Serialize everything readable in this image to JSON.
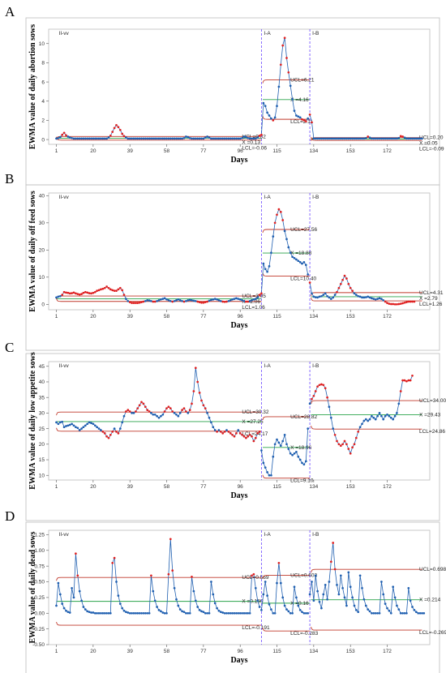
{
  "colors": {
    "ucl_lcl": "#c0392b",
    "center": "#2aa34a",
    "series": "#1f5fb0",
    "in_control_point": "#1f5fb0",
    "out_of_control_point": "#e02020",
    "phase_divider": "#7b5cff",
    "frame": "#bdbdbd",
    "plot_bg": "#ffffff"
  },
  "chart_data": [
    {
      "letter": "A",
      "type": "line",
      "ylabel": "EWMA value of daily abortion sows",
      "xlabel": "Days",
      "x_ticks": [
        "1",
        "20",
        "39",
        "58",
        "77",
        "96",
        "115",
        "134",
        "153",
        "172"
      ],
      "y_ticks": [
        "0",
        "2",
        "4",
        "6",
        "8",
        "10"
      ],
      "ylim": [
        -0.5,
        11.5
      ],
      "xlim": [
        -3,
        194
      ],
      "phases": [
        {
          "label": "II-vv",
          "start": 1,
          "end": 107,
          "ucl": 0.32,
          "center": 0.13,
          "lcl": -0.06,
          "ucl_text": "UCL=0.32",
          "center_text": "X =0.13",
          "lcl_text": "LCL=-0.06"
        },
        {
          "label": "I-A",
          "start": 107,
          "end": 132,
          "ucl": 6.21,
          "center": 4.16,
          "lcl": 2.11,
          "ucl_text": "UCL=6.21",
          "center_text": "X =4.16",
          "lcl_text": "LCL=2.11"
        },
        {
          "label": "I-B",
          "start": 132,
          "end": 190,
          "ucl": 0.2,
          "center": 0.05,
          "lcl": -0.09,
          "ucl_text": "UCL=0.20",
          "center_text": "X =0.05",
          "lcl_text": "LCL=-0.09"
        }
      ],
      "series": [
        {
          "values": [
            0.1,
            0.15,
            0.25,
            0.5,
            0.7,
            0.45,
            0.3,
            0.2,
            0.15,
            0.1,
            0.1,
            0.1,
            0.1,
            0.1,
            0.1,
            0.1,
            0.1,
            0.1,
            0.1,
            0.1,
            0.1,
            0.1,
            0.1,
            0.1,
            0.1,
            0.1,
            0.1,
            0.2,
            0.4,
            0.8,
            1.2,
            1.5,
            1.3,
            1.0,
            0.6,
            0.35,
            0.2,
            0.1,
            0.1,
            0.1,
            0.1,
            0.1,
            0.1,
            0.1,
            0.1,
            0.1,
            0.1,
            0.1,
            0.1,
            0.1,
            0.1,
            0.1,
            0.1,
            0.1,
            0.1,
            0.1,
            0.1,
            0.1,
            0.1,
            0.1,
            0.1,
            0.1,
            0.1,
            0.1,
            0.1,
            0.1,
            0.15,
            0.3,
            0.25,
            0.15,
            0.1,
            0.1,
            0.1,
            0.1,
            0.1,
            0.1,
            0.1,
            0.2,
            0.3,
            0.2,
            0.1,
            0.1,
            0.1,
            0.1,
            0.1,
            0.1,
            0.1,
            0.1,
            0.1,
            0.1,
            0.1,
            0.1,
            0.1,
            0.1,
            0.1,
            0.1,
            0.15,
            0.3,
            0.25,
            0.15,
            0.1,
            0.1,
            0.1,
            0.1,
            0.2,
            0.4,
            0.5,
            3.8,
            3.5,
            2.8,
            2.5,
            2.2,
            2.0,
            2.3,
            3.5,
            5.5,
            7.8,
            9.8,
            10.6,
            8.5,
            7.0,
            5.6,
            4.2,
            3.0,
            2.5,
            2.4,
            2.3,
            2.1,
            2.0,
            1.9,
            2.2,
            2.6,
            1.8,
            0.1,
            0.1,
            0.1,
            0.1,
            0.1,
            0.1,
            0.1,
            0.1,
            0.1,
            0.1,
            0.1,
            0.1,
            0.1,
            0.1,
            0.1,
            0.1,
            0.1,
            0.1,
            0.1,
            0.1,
            0.1,
            0.1,
            0.1,
            0.1,
            0.1,
            0.1,
            0.1,
            0.15,
            0.3,
            0.2,
            0.1,
            0.1,
            0.1,
            0.1,
            0.1,
            0.1,
            0.1,
            0.1,
            0.1,
            0.1,
            0.1,
            0.1,
            0.1,
            0.1,
            0.15,
            0.35,
            0.3,
            0.2,
            0.1,
            0.1,
            0.1,
            0.1,
            0.1,
            0.1,
            0.1,
            0.1,
            0.1
          ]
        }
      ]
    },
    {
      "letter": "B",
      "type": "line",
      "ylabel": "EWMA value of daily off feed sows",
      "xlabel": "Days",
      "x_ticks": [
        "1",
        "20",
        "39",
        "58",
        "77",
        "96",
        "115",
        "134",
        "153",
        "172"
      ],
      "y_ticks": [
        "0",
        "10",
        "20",
        "30",
        "40"
      ],
      "ylim": [
        -2,
        41
      ],
      "xlim": [
        -3,
        194
      ],
      "phases": [
        {
          "label": "II-vv",
          "start": 1,
          "end": 107,
          "ucl": 3.05,
          "center": 2.06,
          "lcl": 1.06,
          "ucl_text": "UCL=3.05",
          "center_text": "X =2.06",
          "lcl_text": "LCL=1.06"
        },
        {
          "label": "I-A",
          "start": 107,
          "end": 132,
          "ucl": 27.56,
          "center": 18.88,
          "lcl": 10.4,
          "ucl_text": "UCL=27.56",
          "center_text": "X =18.88",
          "lcl_text": "LCL=10.40"
        },
        {
          "label": "I-B",
          "start": 132,
          "end": 190,
          "ucl": 4.31,
          "center": 2.79,
          "lcl": 1.26,
          "ucl_text": "UCL=4.31",
          "center_text": "X =2.79",
          "lcl_text": "LCL=1.26"
        }
      ],
      "series": [
        {
          "values": [
            2.5,
            2.8,
            3.0,
            3.5,
            4.5,
            4.3,
            4.2,
            4.0,
            4.1,
            4.3,
            4.0,
            3.8,
            3.6,
            3.8,
            4.2,
            4.5,
            4.3,
            4.1,
            4.0,
            4.2,
            4.5,
            5.0,
            5.2,
            5.5,
            5.7,
            6.0,
            6.5,
            6.0,
            5.5,
            5.2,
            5.0,
            5.0,
            5.5,
            6.0,
            5.2,
            3.5,
            2.0,
            1.2,
            0.8,
            0.5,
            0.5,
            0.5,
            0.5,
            0.6,
            0.8,
            1.0,
            1.2,
            1.5,
            1.4,
            1.2,
            1.0,
            1.0,
            1.2,
            1.5,
            1.8,
            2.0,
            2.2,
            1.8,
            1.5,
            1.2,
            1.0,
            1.2,
            1.5,
            1.8,
            1.5,
            1.2,
            1.0,
            1.2,
            1.5,
            1.6,
            1.5,
            1.3,
            1.2,
            1.0,
            0.8,
            0.6,
            0.6,
            0.8,
            1.0,
            1.3,
            1.6,
            1.8,
            2.0,
            1.8,
            1.5,
            1.2,
            1.0,
            0.9,
            1.0,
            1.2,
            1.5,
            1.8,
            2.0,
            2.2,
            2.0,
            1.8,
            1.5,
            1.2,
            1.0,
            1.0,
            1.2,
            1.5,
            1.8,
            2.0,
            2.5,
            3.5,
            4.0,
            15.0,
            13.0,
            12.0,
            14.0,
            19.0,
            25.0,
            30.0,
            33.0,
            35.0,
            34.0,
            31.0,
            27.0,
            24.0,
            21.0,
            19.0,
            17.5,
            17.0,
            16.5,
            16.0,
            15.5,
            15.0,
            15.5,
            14.5,
            11.0,
            8.0,
            4.0,
            2.8,
            2.6,
            2.5,
            2.8,
            3.0,
            3.5,
            4.0,
            3.0,
            2.5,
            2.0,
            2.5,
            3.5,
            4.5,
            6.0,
            7.5,
            9.0,
            10.5,
            9.5,
            7.5,
            6.0,
            5.0,
            4.0,
            3.5,
            3.0,
            2.8,
            2.5,
            2.5,
            2.6,
            2.8,
            2.5,
            2.2,
            2.0,
            1.8,
            2.0,
            2.2,
            2.0,
            1.5,
            1.0,
            0.5,
            0.2,
            0.1,
            0.1,
            0.0,
            0.0,
            0.1,
            0.2,
            0.4,
            0.6,
            0.8,
            1.0,
            1.0,
            1.0,
            1.0
          ]
        }
      ]
    },
    {
      "letter": "C",
      "type": "line",
      "ylabel": "EWMA value of daily low appetite sows",
      "xlabel": "Days",
      "x_ticks": [
        "1",
        "20",
        "39",
        "58",
        "77",
        "96",
        "115",
        "134",
        "153",
        "172"
      ],
      "y_ticks": [
        "10",
        "15",
        "20",
        "25",
        "30",
        "35",
        "40",
        "45"
      ],
      "ylim": [
        8.5,
        46.5
      ],
      "xlim": [
        -3,
        194
      ],
      "phases": [
        {
          "label": "II-vv",
          "start": 1,
          "end": 107,
          "ucl": 30.32,
          "center": 27.25,
          "lcl": 24.17,
          "ucl_text": "UCL=30.32",
          "center_text": "X =27.25",
          "lcl_text": "LCL=24.17"
        },
        {
          "label": "I-A",
          "start": 107,
          "end": 132,
          "ucl": 28.82,
          "center": 18.96,
          "lcl": 9.1,
          "ucl_text": "UCL=28.82",
          "center_text": "X =18.96",
          "lcl_text": "LCL=9.10"
        },
        {
          "label": "I-B",
          "start": 132,
          "end": 190,
          "ucl": 34.0,
          "center": 29.43,
          "lcl": 24.86,
          "ucl_text": "UCL=34.00",
          "center_text": "X =29.43",
          "lcl_text": "LCL=24.86"
        }
      ],
      "series": [
        {
          "values": [
            27.0,
            26.5,
            27.0,
            27.2,
            25.5,
            25.8,
            26.0,
            26.2,
            26.5,
            26.0,
            25.5,
            25.2,
            24.5,
            25.0,
            25.5,
            26.0,
            26.5,
            27.0,
            26.8,
            26.5,
            26.0,
            25.5,
            25.0,
            24.5,
            24.0,
            23.5,
            22.5,
            22.0,
            23.0,
            24.0,
            25.0,
            24.0,
            23.5,
            25.0,
            27.0,
            29.0,
            30.5,
            31.0,
            30.5,
            30.0,
            30.0,
            30.5,
            31.5,
            32.5,
            33.5,
            33.0,
            32.0,
            31.0,
            30.5,
            30.0,
            29.5,
            29.5,
            29.0,
            28.5,
            29.0,
            29.5,
            30.5,
            31.5,
            32.0,
            31.5,
            30.5,
            30.0,
            29.5,
            29.0,
            30.0,
            31.0,
            31.5,
            30.5,
            30.0,
            31.0,
            33.0,
            37.0,
            44.5,
            40.0,
            36.5,
            34.0,
            32.5,
            31.5,
            30.0,
            28.5,
            27.0,
            25.5,
            24.5,
            24.0,
            24.5,
            24.0,
            23.5,
            24.0,
            24.5,
            24.0,
            23.5,
            23.0,
            22.5,
            23.5,
            24.5,
            23.5,
            23.0,
            22.5,
            22.0,
            22.5,
            23.0,
            22.5,
            21.0,
            22.0,
            23.5,
            24.0,
            18.0,
            14.0,
            12.5,
            11.0,
            10.0,
            10.0,
            16.0,
            20.0,
            21.5,
            20.5,
            19.5,
            21.0,
            23.0,
            20.0,
            18.5,
            17.0,
            16.5,
            17.0,
            17.5,
            16.0,
            15.0,
            14.0,
            13.5,
            14.5,
            25.0,
            33.0,
            34.5,
            35.5,
            37.0,
            38.5,
            39.0,
            39.2,
            39.0,
            38.0,
            35.0,
            32.0,
            28.5,
            25.0,
            23.0,
            21.0,
            20.0,
            19.5,
            20.0,
            21.0,
            20.0,
            18.5,
            17.0,
            19.0,
            20.0,
            22.0,
            24.0,
            25.5,
            26.5,
            27.5,
            28.0,
            27.5,
            28.0,
            29.0,
            28.5,
            28.0,
            29.0,
            30.0,
            29.0,
            28.0,
            29.0,
            29.5,
            29.0,
            28.5,
            28.0,
            29.0,
            30.0,
            33.0,
            37.0,
            40.5,
            40.5,
            40.2,
            40.5,
            40.5,
            42.0
          ]
        }
      ]
    },
    {
      "letter": "D",
      "type": "line",
      "ylabel": "EWMA value of daily dead sows",
      "xlabel": "Days",
      "x_ticks": [
        "1",
        "20",
        "39",
        "58",
        "77",
        "96",
        "115",
        "134",
        "153",
        "172"
      ],
      "y_ticks": [
        "-0.50",
        "-0.25",
        "0.00",
        "0.25",
        "0.50",
        "0.75",
        "1.00",
        "1.25"
      ],
      "ylim": [
        -0.5,
        1.32
      ],
      "xlim": [
        -3,
        194
      ],
      "phases": [
        {
          "label": "II-vv",
          "start": 1,
          "end": 107,
          "ucl": 0.569,
          "center": 0.189,
          "lcl": -0.191,
          "ucl_text": "UCL=0.569",
          "center_text": "X =0.189",
          "lcl_text": "LCL=-0.191"
        },
        {
          "label": "I-A",
          "start": 107,
          "end": 132,
          "ucl": 0.603,
          "center": 0.16,
          "lcl": -0.283,
          "ucl_text": "UCL=0.603",
          "center_text": "X =0.16",
          "lcl_text": "LCL=-0.283"
        },
        {
          "label": "I-B",
          "start": 132,
          "end": 190,
          "ucl": 0.698,
          "center": 0.214,
          "lcl": -0.269,
          "ucl_text": "UCL=0.698",
          "center_text": "X =0.214",
          "lcl_text": "LCL=-0.269"
        }
      ],
      "series": [
        {
          "values": [
            0.12,
            0.48,
            0.3,
            0.15,
            0.08,
            0.04,
            0.02,
            0.01,
            0.4,
            0.25,
            0.95,
            0.6,
            0.35,
            0.2,
            0.1,
            0.06,
            0.03,
            0.02,
            0.01,
            0.01,
            0.0,
            0.0,
            0.0,
            0.0,
            0.0,
            0.0,
            0.0,
            0.0,
            0.0,
            0.8,
            0.88,
            0.5,
            0.28,
            0.15,
            0.08,
            0.04,
            0.02,
            0.01,
            0.0,
            0.0,
            0.0,
            0.0,
            0.0,
            0.0,
            0.0,
            0.0,
            0.0,
            0.0,
            0.0,
            0.6,
            0.35,
            0.2,
            0.1,
            0.05,
            0.03,
            0.01,
            0.0,
            0.0,
            0.62,
            1.18,
            0.68,
            0.4,
            0.22,
            0.12,
            0.06,
            0.03,
            0.02,
            0.0,
            0.0,
            0.0,
            0.58,
            0.35,
            0.2,
            0.1,
            0.05,
            0.03,
            0.02,
            0.0,
            0.0,
            0.0,
            0.5,
            0.3,
            0.16,
            0.08,
            0.04,
            0.02,
            0.01,
            0.0,
            0.0,
            0.0,
            0.0,
            0.0,
            0.0,
            0.0,
            0.0,
            0.0,
            0.0,
            0.0,
            0.0,
            0.0,
            0.0,
            0.6,
            0.62,
            0.4,
            0.2,
            0.1,
            0.05,
            0.3,
            0.5,
            0.28,
            0.14,
            0.06,
            0.0,
            0.0,
            0.48,
            0.8,
            0.48,
            0.25,
            0.12,
            0.06,
            0.03,
            0.0,
            0.0,
            0.42,
            0.25,
            0.12,
            0.05,
            0.02,
            0.0,
            0.0,
            0.0,
            0.3,
            0.5,
            0.2,
            0.6,
            0.35,
            0.18,
            0.08,
            0.3,
            0.45,
            0.22,
            0.5,
            0.82,
            1.12,
            0.7,
            0.45,
            0.3,
            0.6,
            0.4,
            0.25,
            0.12,
            0.65,
            0.42,
            0.25,
            0.12,
            0.05,
            0.02,
            0.6,
            0.4,
            0.22,
            0.12,
            0.06,
            0.03,
            0.0,
            0.0,
            0.0,
            0.0,
            0.0,
            0.5,
            0.3,
            0.15,
            0.08,
            0.04,
            0.0,
            0.42,
            0.25,
            0.12,
            0.06,
            0.0,
            0.0,
            0.0,
            0.0,
            0.4,
            0.2,
            0.1,
            0.05,
            0.02,
            0.0,
            0.0,
            0.0,
            0.0
          ]
        }
      ]
    }
  ]
}
